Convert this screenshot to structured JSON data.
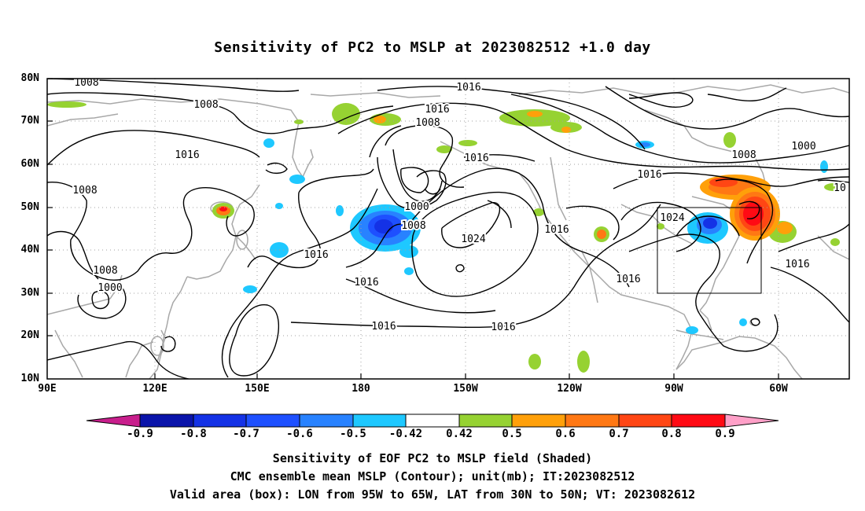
{
  "title": "Sensitivity of PC2 to MSLP at 2023082512 +1.0 day",
  "map": {
    "lat_labels": [
      "80N",
      "70N",
      "60N",
      "50N",
      "40N",
      "30N",
      "20N",
      "10N"
    ],
    "lon_labels": [
      "90E",
      "120E",
      "150E",
      "180",
      "150W",
      "120W",
      "90W",
      "60W"
    ],
    "contour_labels": [
      {
        "id": "c1",
        "text": "1008"
      },
      {
        "id": "c2",
        "text": "1008"
      },
      {
        "id": "c3",
        "text": "1016"
      },
      {
        "id": "c4",
        "text": "1008"
      },
      {
        "id": "c5",
        "text": "1008"
      },
      {
        "id": "c6",
        "text": "1000"
      },
      {
        "id": "c7",
        "text": "1016"
      },
      {
        "id": "c8",
        "text": "1016"
      },
      {
        "id": "c9",
        "text": "1008"
      },
      {
        "id": "c10",
        "text": "1016"
      },
      {
        "id": "c11",
        "text": "1000"
      },
      {
        "id": "c12",
        "text": "1008"
      },
      {
        "id": "c13",
        "text": "1024"
      },
      {
        "id": "c14",
        "text": "1016"
      },
      {
        "id": "c15",
        "text": "1016"
      },
      {
        "id": "c16",
        "text": "1016"
      },
      {
        "id": "c17",
        "text": "1016"
      },
      {
        "id": "c18",
        "text": "1016"
      },
      {
        "id": "c19",
        "text": "1024"
      },
      {
        "id": "c20",
        "text": "1016"
      },
      {
        "id": "c21",
        "text": "1000"
      },
      {
        "id": "c22",
        "text": "1008"
      },
      {
        "id": "c23",
        "text": "1016"
      },
      {
        "id": "c24",
        "text": "1016"
      },
      {
        "id": "c25",
        "text": "10"
      }
    ]
  },
  "colorbar": {
    "ticks": [
      "-0.9",
      "-0.8",
      "-0.7",
      "-0.6",
      "-0.5",
      "-0.42",
      "0.42",
      "0.5",
      "0.6",
      "0.7",
      "0.8",
      "0.9"
    ],
    "colors": {
      "lt_-0.9": "#c81e8c",
      "-0.9_-0.8": "#0a14aa",
      "-0.8_-0.7": "#1432e6",
      "-0.7_-0.6": "#1e50ff",
      "-0.6_-0.5": "#2882ff",
      "-0.5_-0.42": "#1ec8ff",
      "-0.42_0.42": "#ffffff",
      "0.42_0.5": "#96d232",
      "0.5_0.6": "#ffa00a",
      "0.6_0.7": "#ff7814",
      "0.7_0.8": "#ff4614",
      "0.8_0.9": "#ff0a14",
      "gt_0.9": "#ffa0c8"
    }
  },
  "caption": {
    "line1": "Sensitivity of EOF PC2 to MSLP field (Shaded)",
    "line2": "CMC ensemble mean MSLP (Contour); unit(mb); IT:2023082512",
    "line3": "Valid area (box): LON from 95W to 65W, LAT from 30N to 50N; VT: 2023082612"
  }
}
